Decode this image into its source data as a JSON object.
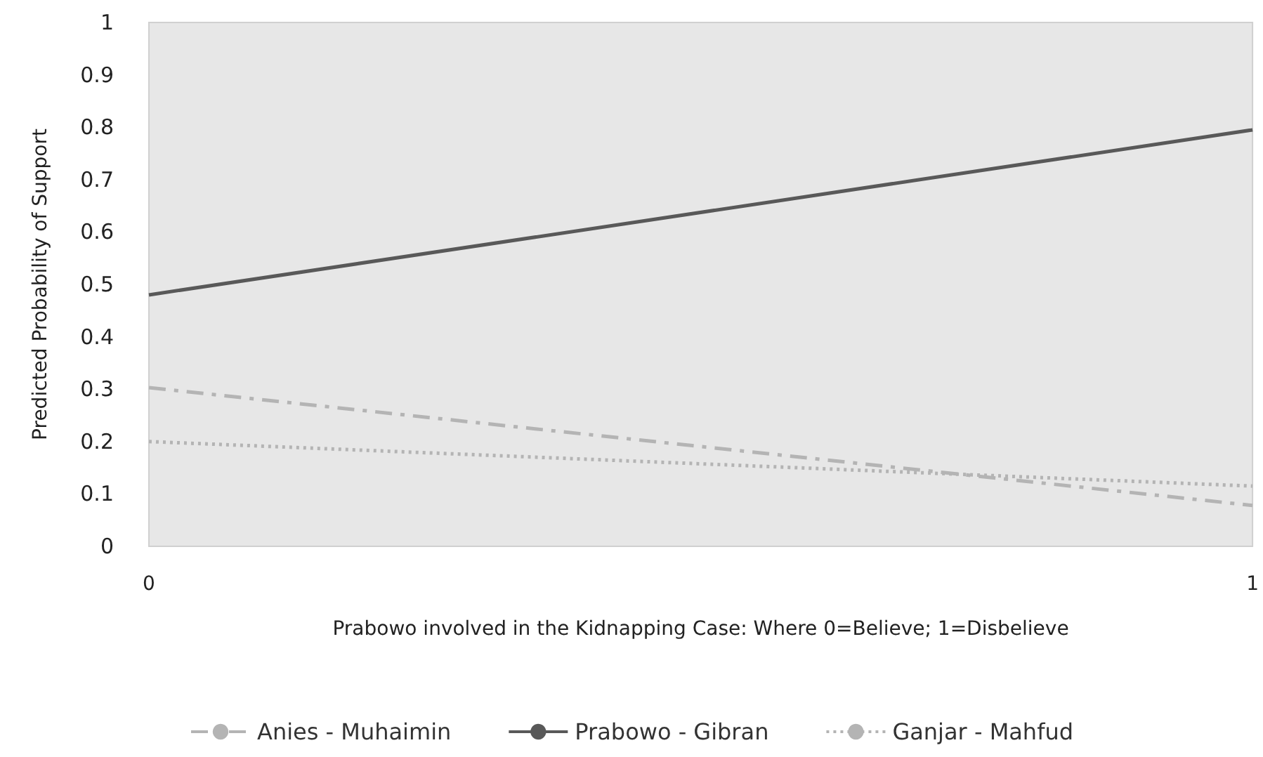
{
  "chart_data": {
    "type": "line",
    "xlabel": "Prabowo involved in the Kidnapping Case: Where 0=Believe; 1=Disbelieve",
    "ylabel": "Predicted Probability of Support",
    "x": [
      0,
      1
    ],
    "series": [
      {
        "name": "Anies - Muhaimin",
        "color": "#b4b4b4",
        "values": [
          0.303,
          0.078
        ],
        "line_style": "dashed"
      },
      {
        "name": "Prabowo - Gibran",
        "color": "#595959",
        "values": [
          0.48,
          0.795
        ],
        "line_style": "solid"
      },
      {
        "name": "Ganjar - Mahfud",
        "color": "#b4b4b4",
        "values": [
          0.2,
          0.115
        ],
        "line_style": "dotted"
      }
    ],
    "xlim": [
      0,
      1
    ],
    "xticks": [
      0,
      1
    ],
    "ylim": [
      0,
      1
    ],
    "yticks": [
      0,
      0.1,
      0.2,
      0.3,
      0.4,
      0.5,
      0.6,
      0.7,
      0.8,
      0.9,
      1
    ],
    "grid": false,
    "legend": "bottom",
    "marker": "none"
  }
}
